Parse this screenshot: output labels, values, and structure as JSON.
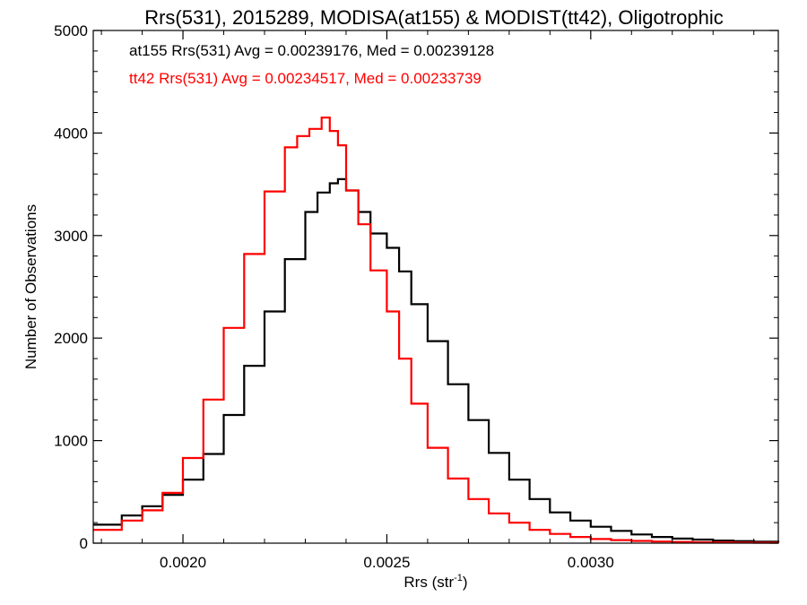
{
  "chart_data": {
    "type": "line",
    "title": "Rrs(531), 2015289, MODISA(at155) & MODIST(tt42), Oligotrophic",
    "xlabel": "Rrs (str",
    "xlabel_sup": "-1",
    "xlabel_suffix": ")",
    "ylabel": "Number of Observations",
    "xlim": [
      0.00178,
      0.00346
    ],
    "ylim": [
      0,
      5000
    ],
    "x_ticks": [
      0.002,
      0.0025,
      0.003
    ],
    "x_tick_labels": [
      "0.0020",
      "0.0025",
      "0.0030"
    ],
    "y_ticks": [
      0,
      1000,
      2000,
      3000,
      4000,
      5000
    ],
    "y_tick_labels": [
      "0",
      "1000",
      "2000",
      "3000",
      "4000",
      "5000"
    ],
    "grid": false,
    "annotations": [
      {
        "text": "at155 Rrs(531) Avg = 0.00239176, Med = 0.00239128",
        "color": "#000000"
      },
      {
        "text": "tt42 Rrs(531) Avg = 0.00234517, Med = 0.00233739",
        "color": "#ff0000"
      }
    ],
    "series": [
      {
        "color": "#000000",
        "x": [
          0.00178,
          0.00185,
          0.0019,
          0.00195,
          0.002,
          0.00205,
          0.0021,
          0.00215,
          0.0022,
          0.00225,
          0.0023,
          0.00233,
          0.00236,
          0.00238,
          0.0024,
          0.00243,
          0.00246,
          0.0025,
          0.00253,
          0.00256,
          0.0026,
          0.00265,
          0.0027,
          0.00275,
          0.0028,
          0.00285,
          0.0029,
          0.00295,
          0.003,
          0.00305,
          0.0031,
          0.00315,
          0.0032,
          0.00325,
          0.0033,
          0.00335,
          0.0034,
          0.00346
        ],
        "y": [
          180,
          270,
          360,
          470,
          620,
          870,
          1250,
          1730,
          2260,
          2770,
          3230,
          3420,
          3510,
          3550,
          3440,
          3230,
          3020,
          2880,
          2650,
          2330,
          1970,
          1550,
          1200,
          880,
          620,
          430,
          300,
          220,
          160,
          120,
          85,
          60,
          45,
          35,
          25,
          20,
          15,
          10
        ]
      },
      {
        "color": "#ff0000",
        "x": [
          0.00178,
          0.00185,
          0.0019,
          0.00195,
          0.002,
          0.00205,
          0.0021,
          0.00215,
          0.0022,
          0.00225,
          0.00228,
          0.00231,
          0.00234,
          0.00236,
          0.00238,
          0.0024,
          0.00243,
          0.00246,
          0.0025,
          0.00253,
          0.00256,
          0.0026,
          0.00265,
          0.0027,
          0.00275,
          0.0028,
          0.00285,
          0.0029,
          0.00295,
          0.003,
          0.00305,
          0.0031,
          0.00315,
          0.0032,
          0.00325,
          0.0033,
          0.00335,
          0.0034,
          0.00346
        ],
        "y": [
          130,
          220,
          320,
          490,
          830,
          1400,
          2100,
          2820,
          3430,
          3860,
          3970,
          4040,
          4150,
          4020,
          3880,
          3440,
          3110,
          2660,
          2260,
          1800,
          1360,
          930,
          630,
          430,
          290,
          200,
          130,
          90,
          60,
          40,
          30,
          22,
          16,
          12,
          9,
          7,
          5,
          4,
          3
        ]
      }
    ]
  }
}
